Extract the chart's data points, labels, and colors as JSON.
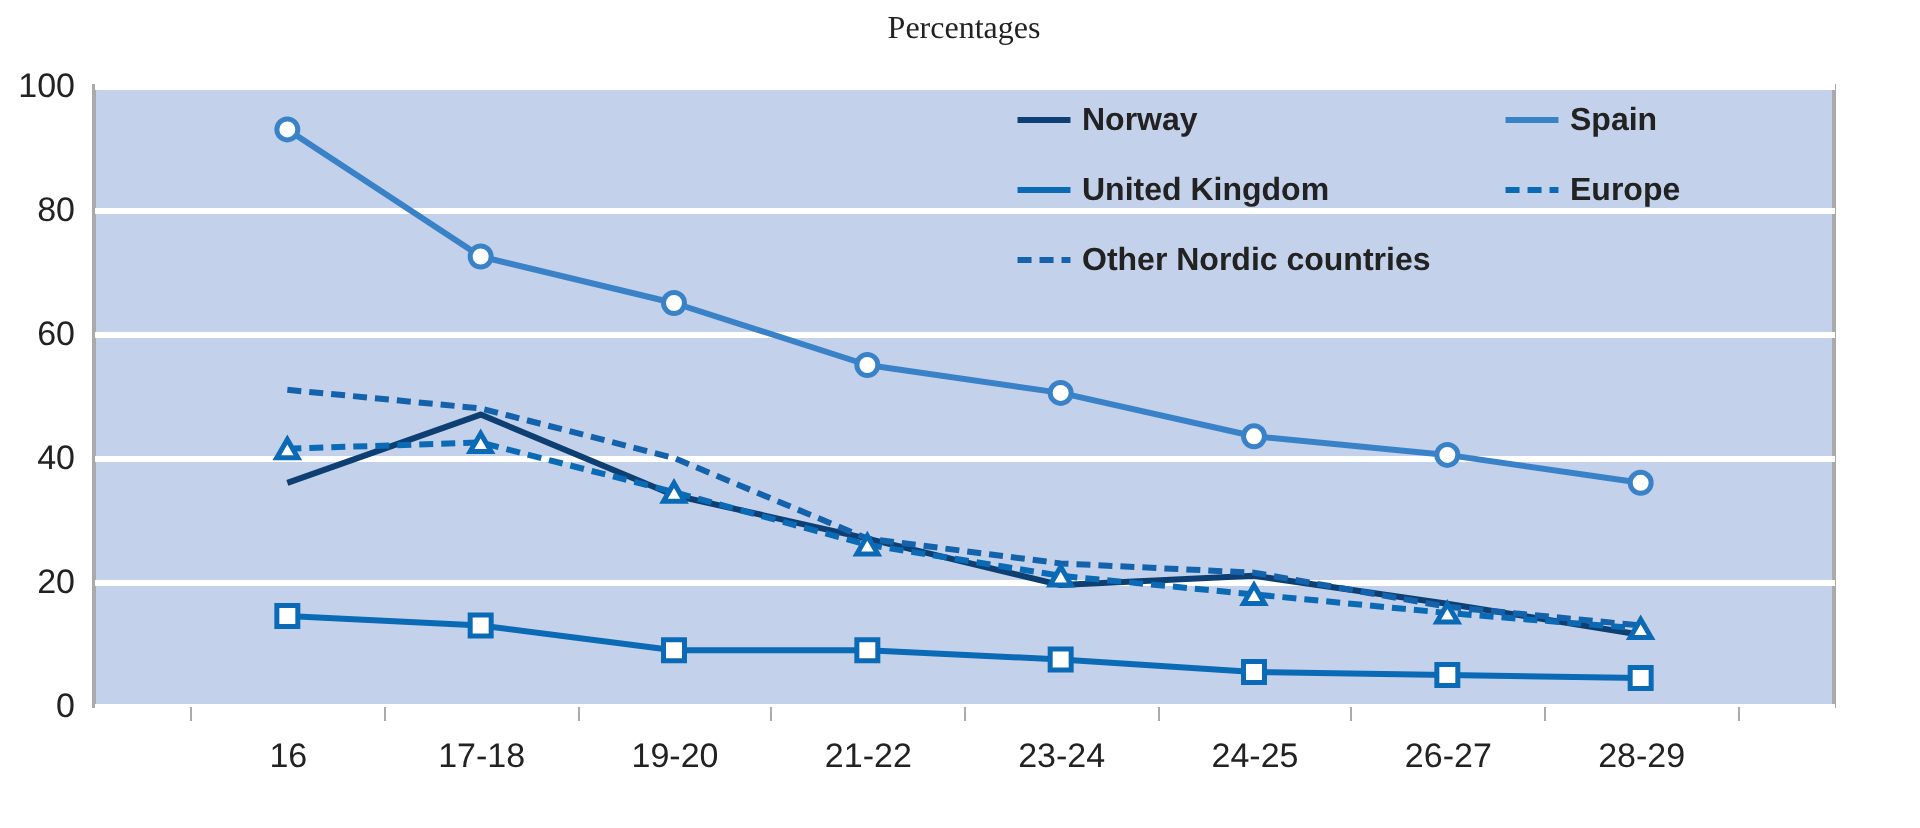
{
  "chart_data": {
    "type": "line",
    "title": "Percentages",
    "categories": [
      "16",
      "17-18",
      "19-20",
      "21-22",
      "23-24",
      "24-25",
      "26-27",
      "28-29"
    ],
    "series": [
      {
        "name": "Norway",
        "color": "#0d3f73",
        "marker": "none",
        "line_style": "solid",
        "values": [
          36,
          47,
          34,
          27,
          19.5,
          21,
          16.5,
          11.5
        ]
      },
      {
        "name": "Spain",
        "color": "#3a82c8",
        "marker": "circle",
        "line_style": "solid",
        "values": [
          93,
          72.5,
          65,
          55,
          50.5,
          43.5,
          40.5,
          36
        ]
      },
      {
        "name": "United Kingdom",
        "color": "#0a6ab5",
        "marker": "square",
        "line_style": "solid",
        "values": [
          14.5,
          13,
          9,
          9,
          7.5,
          5.5,
          5,
          4.5
        ]
      },
      {
        "name": "Europe",
        "color": "#0a6ab5",
        "marker": "triangle",
        "line_style": "dashed",
        "values": [
          41.5,
          42.5,
          34.5,
          26,
          21,
          18,
          15,
          12.5
        ]
      },
      {
        "name": "Other Nordic countries",
        "color": "#1462ab",
        "marker": "none",
        "line_style": "dashed",
        "values": [
          51,
          48,
          40,
          27,
          23,
          21.5,
          16,
          13
        ]
      }
    ],
    "ylim": [
      0,
      100
    ],
    "yticks": [
      0,
      20,
      40,
      60,
      80,
      100
    ],
    "grid": "y",
    "legend": "top right"
  }
}
